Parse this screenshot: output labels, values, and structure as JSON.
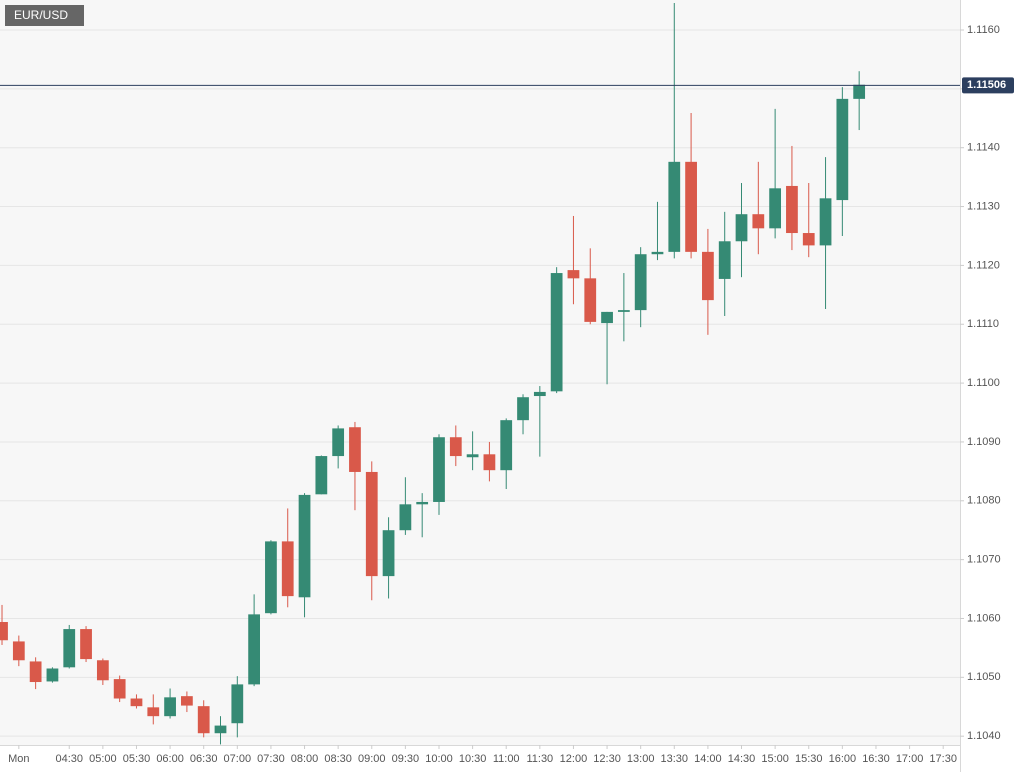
{
  "chart_data": {
    "type": "candlestick",
    "title": "EUR/USD",
    "x": [
      3.5,
      3.75,
      4,
      4.25,
      4.5,
      4.75,
      5,
      5.25,
      5.5,
      5.75,
      6,
      6.25,
      6.5,
      6.75,
      7,
      7.25,
      7.5,
      7.75,
      8,
      8.25,
      8.5,
      8.75,
      9,
      9.25,
      9.5,
      9.75,
      10,
      10.25,
      10.5,
      10.75,
      11,
      11.25,
      11.5,
      11.75,
      12,
      12.25,
      12.5,
      12.75,
      13,
      13.25,
      13.5,
      13.75,
      14,
      14.25,
      14.5,
      14.75,
      15,
      15.25,
      15.5,
      15.75,
      16,
      16.25
    ],
    "open": [
      1.10594,
      1.10561,
      1.10527,
      1.10493,
      1.10517,
      1.10582,
      1.10529,
      1.10497,
      1.10464,
      1.10449,
      1.10434,
      1.10468,
      1.10451,
      1.10405,
      1.10422,
      1.10488,
      1.10609,
      1.10731,
      1.10636,
      1.10811,
      1.10876,
      1.10925,
      1.10849,
      1.10672,
      1.1075,
      1.10794,
      1.10798,
      1.10908,
      1.10874,
      1.10879,
      1.10852,
      1.10937,
      1.10978,
      1.10986,
      1.11192,
      1.11178,
      1.11102,
      1.11121,
      1.11124,
      1.11219,
      1.11223,
      1.11376,
      1.11223,
      1.11177,
      1.11241,
      1.11287,
      1.11263,
      1.11335,
      1.11255,
      1.11234,
      1.11311,
      1.11483
    ],
    "high": [
      1.10623,
      1.10571,
      1.10534,
      1.10517,
      1.10589,
      1.10587,
      1.10532,
      1.10503,
      1.10471,
      1.10471,
      1.10481,
      1.10476,
      1.10461,
      1.10434,
      1.10502,
      1.10641,
      1.10733,
      1.10787,
      1.10813,
      1.10877,
      1.10928,
      1.10934,
      1.10867,
      1.10772,
      1.1084,
      1.10813,
      1.10913,
      1.10928,
      1.10918,
      1.109,
      1.1094,
      1.10981,
      1.10995,
      1.11197,
      1.11284,
      1.11229,
      1.11121,
      1.11187,
      1.11231,
      1.11308,
      1.11646,
      1.11459,
      1.11262,
      1.11291,
      1.1134,
      1.11376,
      1.11466,
      1.11403,
      1.1134,
      1.11384,
      1.11503,
      1.1153
    ],
    "low": [
      1.10555,
      1.10519,
      1.1048,
      1.10491,
      1.10515,
      1.10526,
      1.10487,
      1.10458,
      1.10447,
      1.1042,
      1.1043,
      1.10441,
      1.10398,
      1.10386,
      1.10398,
      1.10485,
      1.10607,
      1.10619,
      1.10602,
      1.10811,
      1.10855,
      1.10784,
      1.10631,
      1.10634,
      1.10742,
      1.10738,
      1.10776,
      1.10859,
      1.10852,
      1.10833,
      1.1082,
      1.10913,
      1.10875,
      1.10983,
      1.11134,
      1.111,
      1.10998,
      1.11071,
      1.11095,
      1.11209,
      1.11212,
      1.11212,
      1.11082,
      1.11114,
      1.1118,
      1.11219,
      1.11246,
      1.11226,
      1.11214,
      1.11126,
      1.1125,
      1.1143
    ],
    "close": [
      1.10563,
      1.10529,
      1.10492,
      1.10515,
      1.10582,
      1.10531,
      1.10495,
      1.10464,
      1.10451,
      1.10434,
      1.10466,
      1.10452,
      1.10405,
      1.10418,
      1.10488,
      1.10607,
      1.10731,
      1.10638,
      1.1081,
      1.10876,
      1.10923,
      1.10849,
      1.10672,
      1.1075,
      1.10794,
      1.10798,
      1.10908,
      1.10876,
      1.10879,
      1.10852,
      1.10937,
      1.10976,
      1.10985,
      1.11187,
      1.11178,
      1.11104,
      1.11121,
      1.11124,
      1.11219,
      1.11223,
      1.11376,
      1.11223,
      1.11141,
      1.11241,
      1.11287,
      1.11263,
      1.11331,
      1.11255,
      1.11234,
      1.11314,
      1.11483,
      1.11507
    ],
    "up_color": "#358a74",
    "down_color": "#d9594a",
    "last_price": 1.11506,
    "last_price_color": "#2c3f5f",
    "xlim": [
      3.47,
      17.75
    ],
    "ylim": [
      1.10385,
      1.11651
    ],
    "xticks": [
      {
        "value": 3.75,
        "label": "Mon"
      },
      {
        "value": 4.5,
        "label": "04:30"
      },
      {
        "value": 5,
        "label": "05:00"
      },
      {
        "value": 5.5,
        "label": "05:30"
      },
      {
        "value": 6,
        "label": "06:00"
      },
      {
        "value": 6.5,
        "label": "06:30"
      },
      {
        "value": 7,
        "label": "07:00"
      },
      {
        "value": 7.5,
        "label": "07:30"
      },
      {
        "value": 8,
        "label": "08:00"
      },
      {
        "value": 8.5,
        "label": "08:30"
      },
      {
        "value": 9,
        "label": "09:00"
      },
      {
        "value": 9.5,
        "label": "09:30"
      },
      {
        "value": 10,
        "label": "10:00"
      },
      {
        "value": 10.5,
        "label": "10:30"
      },
      {
        "value": 11,
        "label": "11:00"
      },
      {
        "value": 11.5,
        "label": "11:30"
      },
      {
        "value": 12,
        "label": "12:00"
      },
      {
        "value": 12.5,
        "label": "12:30"
      },
      {
        "value": 13,
        "label": "13:00"
      },
      {
        "value": 13.5,
        "label": "13:30"
      },
      {
        "value": 14,
        "label": "14:00"
      },
      {
        "value": 14.5,
        "label": "14:30"
      },
      {
        "value": 15,
        "label": "15:00"
      },
      {
        "value": 15.5,
        "label": "15:30"
      },
      {
        "value": 16,
        "label": "16:00"
      },
      {
        "value": 16.5,
        "label": "16:30"
      },
      {
        "value": 17,
        "label": "17:00"
      },
      {
        "value": 17.5,
        "label": "17:30"
      }
    ],
    "yticks": [
      {
        "value": 1.104,
        "label": "1.1040"
      },
      {
        "value": 1.105,
        "label": "1.1050"
      },
      {
        "value": 1.106,
        "label": "1.1060"
      },
      {
        "value": 1.107,
        "label": "1.1070"
      },
      {
        "value": 1.108,
        "label": "1.1080"
      },
      {
        "value": 1.109,
        "label": "1.1090"
      },
      {
        "value": 1.11,
        "label": "1.1100"
      },
      {
        "value": 1.111,
        "label": "1.1110"
      },
      {
        "value": 1.112,
        "label": "1.1120"
      },
      {
        "value": 1.113,
        "label": "1.1130"
      },
      {
        "value": 1.114,
        "label": "1.1140"
      },
      {
        "value": 1.115,
        "label": "1.1150"
      },
      {
        "value": 1.116,
        "label": "1.1160"
      }
    ],
    "grid": true
  }
}
